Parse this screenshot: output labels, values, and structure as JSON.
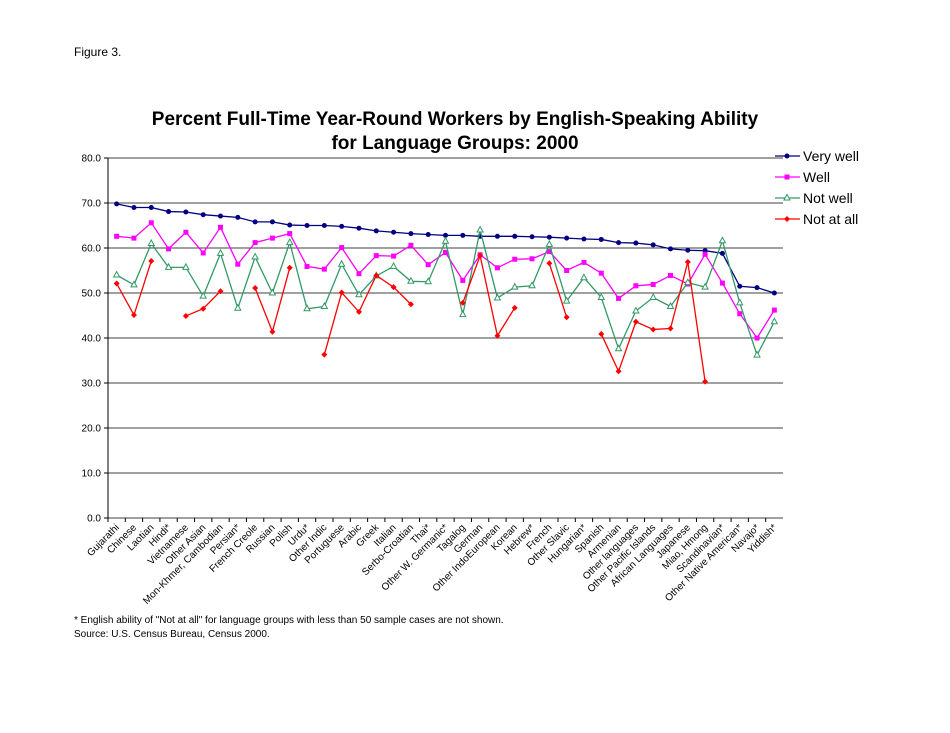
{
  "figure_label": "Figure 3.",
  "chart_data": {
    "type": "line",
    "title": [
      "Percent  Full-Time Year-Round Workers by English-Speaking Ability",
      "for Language Groups: 2000"
    ],
    "categories": [
      "Gujarathi",
      "Chinese",
      "Laotian",
      "Hindi*",
      "Vietnamese",
      "Other Asian",
      "Mon-Khmer, Cambodian",
      "Persian*",
      "French Creole",
      "Russian",
      "Polish",
      "Urdu*",
      "Other Indic",
      "Portuguese",
      "Arabic",
      "Greek",
      "Italian",
      "Serbo-Croatian",
      "Thai*",
      "Other W. Germanic*",
      "Tagalog",
      "German",
      "Other IndoEuropean",
      "Korean",
      "Hebrew*",
      "French",
      "Other Slavic",
      "Hungarian*",
      "Spanish",
      "Armenian",
      "Other languages",
      "Other Pacific Islands",
      "African Languages",
      "Japanese",
      "Miao, Hmong",
      "Scandinavian*",
      "Other Native American*",
      "Navajo*",
      "Yiddish*"
    ],
    "series": [
      {
        "name": "Very well",
        "color": "#000080",
        "marker": "circle",
        "values": [
          69.8,
          69.0,
          69.0,
          68.1,
          68.0,
          67.4,
          67.1,
          66.8,
          65.8,
          65.8,
          65.1,
          65.0,
          65.0,
          64.8,
          64.4,
          63.8,
          63.5,
          63.2,
          63.0,
          62.8,
          62.8,
          62.6,
          62.6,
          62.6,
          62.5,
          62.4,
          62.2,
          62.0,
          61.9,
          61.2,
          61.1,
          60.7,
          59.8,
          59.5,
          59.4,
          58.8,
          51.5,
          51.2,
          50.0
        ]
      },
      {
        "name": "Well",
        "color": "#ff00ff",
        "marker": "square",
        "values": [
          62.6,
          62.2,
          65.6,
          59.8,
          63.5,
          58.9,
          64.6,
          56.4,
          61.2,
          62.2,
          63.2,
          55.9,
          55.3,
          60.1,
          54.3,
          58.3,
          58.2,
          60.6,
          56.3,
          59.0,
          52.8,
          58.5,
          55.6,
          57.5,
          57.6,
          59.2,
          55.0,
          56.8,
          54.4,
          48.8,
          51.6,
          51.9,
          53.9,
          52.0,
          58.6,
          52.2,
          45.4,
          40.0,
          46.2
        ]
      },
      {
        "name": "Not well",
        "color": "#339966",
        "marker": "triangle",
        "values": [
          54.0,
          51.8,
          61.0,
          55.7,
          55.7,
          49.3,
          58.8,
          46.6,
          58.0,
          50.0,
          61.2,
          46.5,
          47.0,
          56.4,
          49.6,
          53.8,
          55.9,
          52.6,
          52.5,
          61.5,
          45.2,
          64.0,
          48.9,
          51.3,
          51.6,
          60.8,
          48.2,
          53.4,
          49.0,
          37.6,
          46.0,
          49.0,
          47.0,
          52.3,
          51.3,
          61.6,
          47.8,
          36.2,
          43.6
        ]
      },
      {
        "name": "Not at all",
        "color": "#ff0000",
        "marker": "diamond",
        "values": [
          52.1,
          45.1,
          57.1,
          null,
          44.9,
          46.5,
          50.4,
          null,
          51.1,
          41.4,
          55.6,
          null,
          36.3,
          50.1,
          45.8,
          53.9,
          51.3,
          47.5,
          null,
          null,
          47.8,
          58.3,
          40.5,
          46.7,
          null,
          56.6,
          44.6,
          null,
          40.9,
          32.6,
          43.6,
          41.9,
          42.1,
          56.9,
          30.3,
          null,
          null,
          null,
          null
        ]
      }
    ],
    "ylim": [
      0,
      80
    ],
    "yticks": [
      {
        "value": 0,
        "label": "0.0"
      },
      {
        "value": 10,
        "label": "10.0"
      },
      {
        "value": 20,
        "label": "20.0"
      },
      {
        "value": 30,
        "label": "30.0"
      },
      {
        "value": 40,
        "label": "40.0"
      },
      {
        "value": 50,
        "label": "50.0"
      },
      {
        "value": 60,
        "label": "60.0"
      },
      {
        "value": 70,
        "label": "70.0"
      },
      {
        "value": 80,
        "label": "80.0"
      }
    ],
    "grid": true,
    "legend": "right",
    "notes": [
      "* English ability of \"Not at all\" for language groups with less than 50 sample cases are not shown.",
      "Source: U.S. Census Bureau, Census 2000."
    ]
  }
}
